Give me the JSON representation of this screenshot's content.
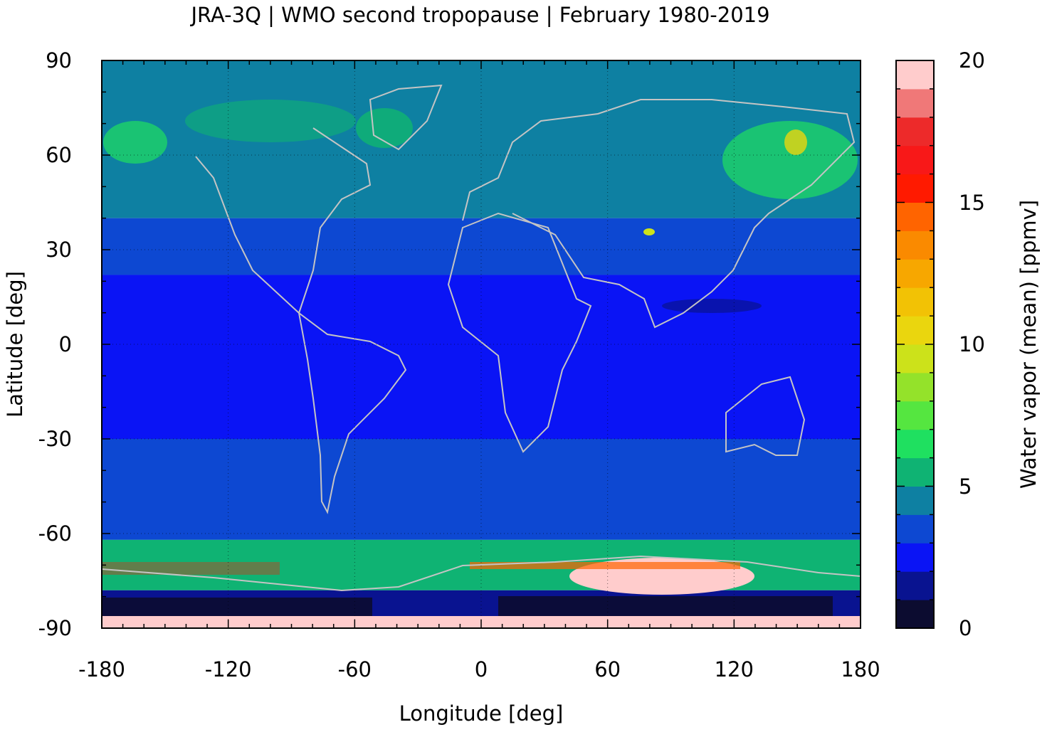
{
  "chart_data": {
    "type": "heatmap",
    "title": "JRA-3Q | WMO second tropopause | February 1980-2019",
    "xlabel": "Longitude [deg]",
    "ylabel": "Latitude [deg]",
    "colorbar_label": "Water vapor (mean) [ppmv]",
    "xlim": [
      -180,
      180
    ],
    "ylim": [
      -90,
      90
    ],
    "x_ticks": [
      "-180",
      "-120",
      "-60",
      "0",
      "60",
      "120",
      "180"
    ],
    "y_ticks": [
      "90",
      "60",
      "30",
      "0",
      "-30",
      "-60",
      "-90"
    ],
    "colorbar_range": [
      0,
      20
    ],
    "colorbar_ticks": [
      "20",
      "15",
      "10",
      "5",
      "0"
    ],
    "grid": true,
    "colormap": [
      "#0c0c30",
      "#091390",
      "#0a14f5",
      "#0d48d2",
      "#0e80a2",
      "#0fb373",
      "#1fe060",
      "#55e640",
      "#94e22a",
      "#cce21a",
      "#ead60e",
      "#f2c205",
      "#f7a700",
      "#fa8a00",
      "#ff6400",
      "#ff1a00",
      "#f81818",
      "#ed2a2a",
      "#f07878",
      "#ffcccc"
    ],
    "zones": [
      {
        "lat_from": 90,
        "lat_to": 40,
        "value": 4.5
      },
      {
        "lat_from": 40,
        "lat_to": 22,
        "value": 3.5
      },
      {
        "lat_from": 22,
        "lat_to": -30,
        "value": 2.5
      },
      {
        "lat_from": -30,
        "lat_to": -62,
        "value": 3.5
      },
      {
        "lat_from": -62,
        "lat_to": -78,
        "value": 5.5
      },
      {
        "lat_from": -78,
        "lat_to": -90,
        "value": 1.0
      }
    ]
  }
}
